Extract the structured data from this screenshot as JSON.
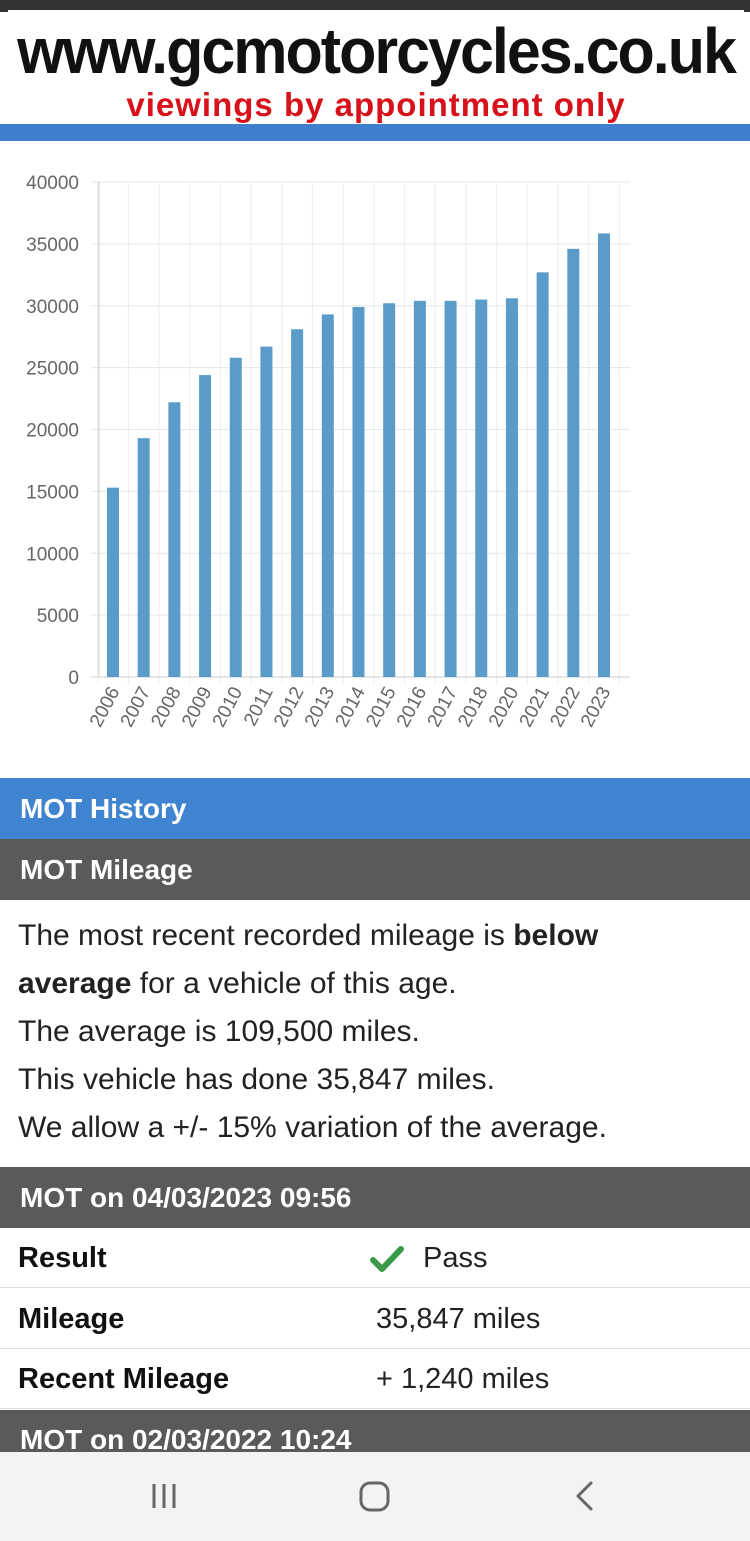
{
  "banner": {
    "site": "www.gcmotorcycles.co.uk",
    "tagline": "viewings by appointment only"
  },
  "chart_data": {
    "type": "bar",
    "title": "",
    "xlabel": "",
    "ylabel": "",
    "ylim": [
      0,
      40000
    ],
    "yticks": [
      0,
      5000,
      10000,
      15000,
      20000,
      25000,
      30000,
      35000,
      40000
    ],
    "categories": [
      "2006",
      "2007",
      "2008",
      "2009",
      "2010",
      "2011",
      "2012",
      "2013",
      "2014",
      "2015",
      "2016",
      "2017",
      "2018",
      "2020",
      "2021",
      "2022",
      "2023"
    ],
    "values": [
      15300,
      19300,
      22200,
      24400,
      25800,
      26700,
      28100,
      29300,
      29900,
      30200,
      30400,
      30400,
      30500,
      30600,
      32700,
      34600,
      35847
    ],
    "bar_color": "#5b9bc9",
    "grid": true
  },
  "mot_history": {
    "heading": "MOT History"
  },
  "mot_mileage": {
    "heading": "MOT Mileage",
    "line1_pre": "The most recent recorded mileage is ",
    "line1_bold1": "below",
    "line1_bold2": "average",
    "line1_post": " for a vehicle of this age.",
    "line2": "The average is 109,500 miles.",
    "line3": "This vehicle has done 35,847 miles.",
    "line4": "We allow a +/- 15% variation of the average."
  },
  "mot_tests": [
    {
      "heading": "MOT on 04/03/2023 09:56",
      "result_label": "Result",
      "result_value": "Pass",
      "mileage_label": "Mileage",
      "mileage_value": "35,847 miles",
      "recent_label": "Recent Mileage",
      "recent_value": "+ 1,240 miles"
    },
    {
      "heading": "MOT on 02/03/2022 10:24"
    }
  ],
  "colors": {
    "accent_blue": "#3f84d0",
    "section_gray": "#5a5a5a",
    "pass_green": "#3a9a4a",
    "tagline_red": "#d8101a"
  },
  "icons": {
    "result": "checkmark-icon",
    "nav_recents": "recent-apps-icon",
    "nav_home": "home-icon",
    "nav_back": "back-icon"
  }
}
